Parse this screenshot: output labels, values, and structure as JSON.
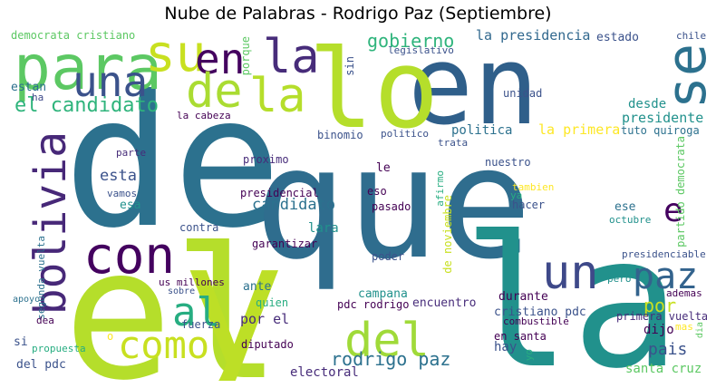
{
  "title": "Nube de Palabras - Rodrigo Paz (Septiembre)",
  "palette": [
    "#440154",
    "#472c7a",
    "#3b518b",
    "#2c718e",
    "#21908d",
    "#27ad81",
    "#5cc863",
    "#aadc32",
    "#fde725"
  ],
  "words": [
    {
      "text": "de",
      "color": "#2c718e"
    },
    {
      "text": "que",
      "color": "#2f6d8e"
    },
    {
      "text": "el",
      "color": "#b5de2b"
    },
    {
      "text": "y",
      "color": "#bddf26"
    },
    {
      "text": "la",
      "color": "#21918c"
    },
    {
      "text": "en",
      "color": "#2f5f8a"
    },
    {
      "text": "lo",
      "color": "#b5de2b"
    },
    {
      "text": "para",
      "color": "#5cc863"
    },
    {
      "text": "una",
      "color": "#3b528b"
    },
    {
      "text": "su",
      "color": "#c8e020"
    },
    {
      "text": "en",
      "color": "#44015f"
    },
    {
      "text": "la",
      "color": "#472c7a"
    },
    {
      "text": "de",
      "color": "#aadc32"
    },
    {
      "text": "la",
      "color": "#b5de2b"
    },
    {
      "text": "se",
      "color": "#2c718e"
    },
    {
      "text": "el candidato",
      "color": "#2fb47c"
    },
    {
      "text": "bolivia",
      "color": "#472878"
    },
    {
      "text": "con",
      "color": "#44015f"
    },
    {
      "text": "al",
      "color": "#27ad81"
    },
    {
      "text": "como",
      "color": "#c8e020"
    },
    {
      "text": "del",
      "color": "#a0da39"
    },
    {
      "text": "un",
      "color": "#3e4989"
    },
    {
      "text": "paz",
      "color": "#33638d"
    },
    {
      "text": "e",
      "color": "#44015f"
    },
    {
      "text": "por",
      "color": "#c8e020"
    },
    {
      "text": "gobierno",
      "color": "#2fb47c"
    },
    {
      "text": "la presidencia",
      "color": "#31688e"
    },
    {
      "text": "estado",
      "color": "#3b528b"
    },
    {
      "text": "chile",
      "color": "#3b528b"
    },
    {
      "text": "democrata cristiano",
      "color": "#5cc863"
    },
    {
      "text": "estan",
      "color": "#2c718e"
    },
    {
      "text": "ha",
      "color": "#3e4989"
    },
    {
      "text": "porque",
      "color": "#5cc863"
    },
    {
      "text": "legislativo",
      "color": "#3b528b"
    },
    {
      "text": "sin",
      "color": "#3b528b"
    },
    {
      "text": "unidad",
      "color": "#3b528b"
    },
    {
      "text": "desde",
      "color": "#21918c"
    },
    {
      "text": "presidente",
      "color": "#21918c"
    },
    {
      "text": "la cabeza",
      "color": "#440154"
    },
    {
      "text": "politica",
      "color": "#2c718e"
    },
    {
      "text": "la primera",
      "color": "#fde725"
    },
    {
      "text": "tuto quiroga",
      "color": "#2c718e"
    },
    {
      "text": "binomio",
      "color": "#3b528b"
    },
    {
      "text": "politico",
      "color": "#3b528b"
    },
    {
      "text": "trata",
      "color": "#3b528b"
    },
    {
      "text": "partido democrata",
      "color": "#5cc863"
    },
    {
      "text": "parte",
      "color": "#472c7a"
    },
    {
      "text": "proximo",
      "color": "#472c7a"
    },
    {
      "text": "nuestro",
      "color": "#3b528b"
    },
    {
      "text": "esta",
      "color": "#3b528b"
    },
    {
      "text": "le",
      "color": "#440154"
    },
    {
      "text": "afirmo",
      "color": "#27ad81"
    },
    {
      "text": "tambien",
      "color": "#fde725"
    },
    {
      "text": "vamos",
      "color": "#3b528b"
    },
    {
      "text": "presidencial",
      "color": "#440154"
    },
    {
      "text": "eso",
      "color": "#440154"
    },
    {
      "text": "ya",
      "color": "#27ad81"
    },
    {
      "text": "esa",
      "color": "#21918c"
    },
    {
      "text": "candidato",
      "color": "#2c718e"
    },
    {
      "text": "pasado",
      "color": "#440154"
    },
    {
      "text": "de noviembre",
      "color": "#c8e020"
    },
    {
      "text": "hacer",
      "color": "#3b528b"
    },
    {
      "text": "ese",
      "color": "#2c718e"
    },
    {
      "text": "octubre",
      "color": "#21918c"
    },
    {
      "text": "contra",
      "color": "#3b528b"
    },
    {
      "text": "lara",
      "color": "#21918c"
    },
    {
      "text": "garantizar",
      "color": "#440154"
    },
    {
      "text": "segunda vuelta",
      "color": "#2c718e"
    },
    {
      "text": "presidenciable",
      "color": "#3b528b"
    },
    {
      "text": "poder",
      "color": "#3b528b"
    },
    {
      "text": "apoyo",
      "color": "#2c718e"
    },
    {
      "text": "us millones",
      "color": "#440154"
    },
    {
      "text": "sobre",
      "color": "#3b528b"
    },
    {
      "text": "ante",
      "color": "#2c718e"
    },
    {
      "text": "quien",
      "color": "#27ad81"
    },
    {
      "text": "campana",
      "color": "#21918c"
    },
    {
      "text": "pero",
      "color": "#21918c"
    },
    {
      "text": "ademas",
      "color": "#440154"
    },
    {
      "text": "durante",
      "color": "#440154"
    },
    {
      "text": "dea",
      "color": "#440154"
    },
    {
      "text": "por el",
      "color": "#472c7a"
    },
    {
      "text": "pdc rodrigo",
      "color": "#440154"
    },
    {
      "text": "encuentro",
      "color": "#472c7a"
    },
    {
      "text": "cristiano pdc",
      "color": "#3b528b"
    },
    {
      "text": "primera vuelta",
      "color": "#472c7a"
    },
    {
      "text": "mas",
      "color": "#fde725"
    },
    {
      "text": "dia",
      "color": "#5cc863"
    },
    {
      "text": "o",
      "color": "#fde725"
    },
    {
      "text": "fuerza",
      "color": "#3b528b"
    },
    {
      "text": "combustible",
      "color": "#440154"
    },
    {
      "text": "propuesta",
      "color": "#27ad81"
    },
    {
      "text": "si",
      "color": "#3b528b"
    },
    {
      "text": "diputado",
      "color": "#440154"
    },
    {
      "text": "en santa",
      "color": "#440154"
    },
    {
      "text": "yo",
      "color": "#27ad81"
    },
    {
      "text": "del pdc",
      "color": "#3b528b"
    },
    {
      "text": "electoral",
      "color": "#472c7a"
    },
    {
      "text": "rodrigo paz",
      "color": "#2c718e"
    },
    {
      "text": "hay",
      "color": "#3b528b"
    },
    {
      "text": "pais",
      "color": "#3b528b"
    },
    {
      "text": "dijo",
      "color": "#440154"
    },
    {
      "text": "santa cruz",
      "color": "#5cc863"
    }
  ]
}
